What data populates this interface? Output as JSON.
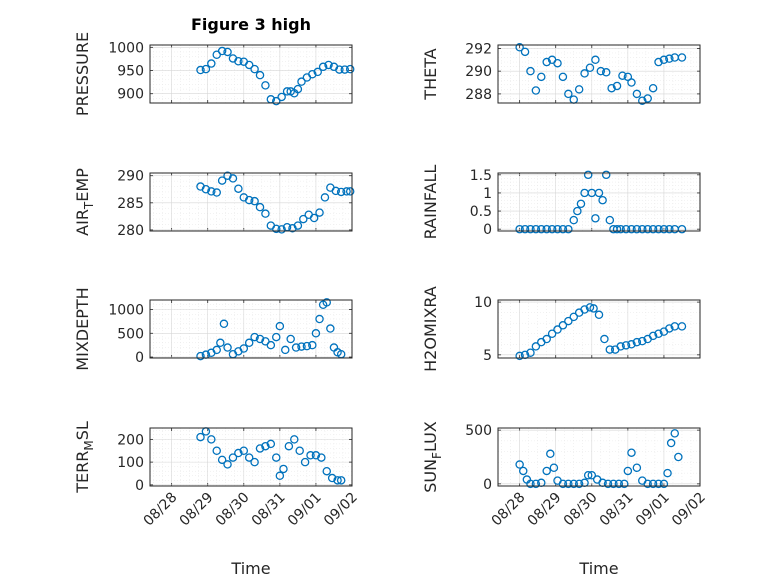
{
  "figure": {
    "title": "Figure 3 high"
  },
  "chart_data": [
    {
      "type": "scatter",
      "panel": 0,
      "title": "Figure 3 high",
      "ylabel": "PRESSURE",
      "ylabel_parts": [],
      "xlabel": "",
      "x_tick_labels": [],
      "ylim": [
        880,
        1005
      ],
      "yticks": [
        900,
        950,
        1000
      ],
      "ytick_labels": [
        "900",
        "950",
        "1000"
      ],
      "color": "#0072BD",
      "series": [
        {
          "x": [
            0.8,
            0.95,
            1.1,
            1.25,
            1.4,
            1.55,
            1.7,
            1.85,
            2.0,
            2.15,
            2.3,
            2.45,
            2.6,
            2.75,
            2.9,
            3.05,
            3.2,
            3.3,
            3.4,
            3.5,
            3.6,
            3.75,
            3.9,
            4.05,
            4.2,
            4.35,
            4.5,
            4.65,
            4.8,
            4.95
          ],
          "y": [
            951,
            953,
            965,
            984,
            992,
            990,
            976,
            970,
            969,
            962,
            953,
            940,
            918,
            888,
            884,
            893,
            905,
            905,
            901,
            910,
            926,
            935,
            942,
            947,
            958,
            962,
            958,
            952,
            952,
            953
          ]
        }
      ]
    },
    {
      "type": "scatter",
      "panel": 1,
      "title": "",
      "ylabel": "THETA",
      "ylabel_parts": [],
      "xlabel": "",
      "x_tick_labels": [],
      "ylim": [
        287.2,
        292.3
      ],
      "yticks": [
        288,
        290,
        292
      ],
      "ytick_labels": [
        "288",
        "290",
        "292"
      ],
      "color": "#0072BD",
      "series": [
        {
          "x": [
            0.0,
            0.15,
            0.3,
            0.45,
            0.6,
            0.75,
            0.9,
            1.05,
            1.2,
            1.35,
            1.5,
            1.65,
            1.8,
            1.95,
            2.1,
            2.25,
            2.4,
            2.55,
            2.7,
            2.85,
            3.0,
            3.1,
            3.25,
            3.4,
            3.55,
            3.7,
            3.85,
            4.0,
            4.15,
            4.3,
            4.5
          ],
          "y": [
            292.1,
            291.7,
            290.0,
            288.3,
            289.5,
            290.8,
            291.0,
            290.7,
            289.5,
            288.0,
            287.5,
            288.4,
            289.8,
            290.3,
            291.0,
            290.0,
            289.9,
            288.5,
            288.7,
            289.6,
            289.5,
            289.0,
            288.0,
            287.4,
            287.6,
            288.5,
            290.8,
            291.0,
            291.1,
            291.2,
            291.2
          ]
        }
      ]
    },
    {
      "type": "scatter",
      "panel": 2,
      "title": "",
      "ylabel": "AIR_TEMP",
      "ylabel_parts": [
        "AIR",
        "T",
        "EMP"
      ],
      "xlabel": "",
      "x_tick_labels": [],
      "ylim": [
        279.8,
        290.5
      ],
      "yticks": [
        280,
        285,
        290
      ],
      "ytick_labels": [
        "280",
        "285",
        "290"
      ],
      "color": "#0072BD",
      "series": [
        {
          "x": [
            0.8,
            0.95,
            1.1,
            1.25,
            1.4,
            1.55,
            1.7,
            1.85,
            2.0,
            2.15,
            2.3,
            2.45,
            2.6,
            2.75,
            2.9,
            3.05,
            3.2,
            3.35,
            3.5,
            3.65,
            3.8,
            3.95,
            4.1,
            4.25,
            4.4,
            4.55,
            4.7,
            4.85,
            4.95
          ],
          "y": [
            288.0,
            287.5,
            287.1,
            286.9,
            289.1,
            290.0,
            289.5,
            287.6,
            286.0,
            285.5,
            285.3,
            284.2,
            283.0,
            280.8,
            280.2,
            280.1,
            280.5,
            280.3,
            280.8,
            282.0,
            282.8,
            282.2,
            283.2,
            286.0,
            287.8,
            287.2,
            287.0,
            287.1,
            287.1
          ]
        }
      ]
    },
    {
      "type": "scatter",
      "panel": 3,
      "title": "",
      "ylabel": "RAINFALL",
      "ylabel_parts": [],
      "xlabel": "",
      "x_tick_labels": [],
      "ylim": [
        -0.05,
        1.55
      ],
      "yticks": [
        0,
        0.5,
        1,
        1.5
      ],
      "ytick_labels": [
        "0",
        "0.5",
        "1",
        "1.5"
      ],
      "color": "#0072BD",
      "series": [
        {
          "x": [
            0.0,
            0.15,
            0.3,
            0.45,
            0.6,
            0.75,
            0.9,
            1.05,
            1.2,
            1.35,
            1.5,
            1.6,
            1.7,
            1.8,
            1.9,
            2.0,
            2.1,
            2.2,
            2.3,
            2.4,
            2.5,
            2.6,
            2.7,
            2.8,
            2.95,
            3.1,
            3.25,
            3.4,
            3.55,
            3.7,
            3.85,
            4.0,
            4.15,
            4.3,
            4.5
          ],
          "y": [
            0,
            0,
            0,
            0,
            0,
            0,
            0,
            0,
            0,
            0,
            0.25,
            0.5,
            0.7,
            1.0,
            1.5,
            1.0,
            0.3,
            1.0,
            0.8,
            1.5,
            0.25,
            0,
            0,
            0,
            0,
            0,
            0,
            0,
            0,
            0,
            0,
            0,
            0,
            0,
            0
          ]
        }
      ]
    },
    {
      "type": "scatter",
      "panel": 4,
      "title": "",
      "ylabel": "MIXDEPTH",
      "ylabel_parts": [],
      "xlabel": "",
      "x_tick_labels": [],
      "ylim": [
        -20,
        1200
      ],
      "yticks": [
        0,
        500,
        1000
      ],
      "ytick_labels": [
        "0",
        "500",
        "1000"
      ],
      "color": "#0072BD",
      "series": [
        {
          "x": [
            0.8,
            0.95,
            1.1,
            1.25,
            1.35,
            1.45,
            1.55,
            1.7,
            1.85,
            2.0,
            2.15,
            2.3,
            2.45,
            2.6,
            2.75,
            2.9,
            3.0,
            3.15,
            3.3,
            3.45,
            3.6,
            3.75,
            3.9,
            4.0,
            4.1,
            4.2,
            4.3,
            4.4,
            4.5,
            4.6,
            4.7
          ],
          "y": [
            20,
            50,
            90,
            150,
            300,
            700,
            200,
            60,
            120,
            180,
            300,
            420,
            380,
            330,
            250,
            420,
            650,
            150,
            380,
            200,
            220,
            230,
            250,
            500,
            800,
            1100,
            1150,
            600,
            200,
            100,
            60
          ]
        }
      ]
    },
    {
      "type": "scatter",
      "panel": 5,
      "title": "",
      "ylabel": "H2OMIXRA",
      "ylabel_parts": [],
      "xlabel": "",
      "x_tick_labels": [],
      "ylim": [
        4.7,
        10.2
      ],
      "yticks": [
        5,
        10
      ],
      "ytick_labels": [
        "5",
        "10"
      ],
      "color": "#0072BD",
      "series": [
        {
          "x": [
            0.0,
            0.15,
            0.3,
            0.45,
            0.6,
            0.75,
            0.9,
            1.05,
            1.2,
            1.35,
            1.5,
            1.65,
            1.8,
            1.95,
            2.05,
            2.2,
            2.35,
            2.5,
            2.65,
            2.8,
            2.95,
            3.1,
            3.25,
            3.4,
            3.55,
            3.7,
            3.85,
            4.0,
            4.15,
            4.3,
            4.5
          ],
          "y": [
            4.9,
            5.0,
            5.2,
            5.8,
            6.2,
            6.5,
            7.0,
            7.4,
            7.8,
            8.2,
            8.6,
            9.0,
            9.3,
            9.5,
            9.4,
            8.8,
            6.5,
            5.5,
            5.5,
            5.8,
            5.9,
            6.0,
            6.2,
            6.3,
            6.5,
            6.8,
            7.0,
            7.2,
            7.5,
            7.7,
            7.7
          ]
        }
      ]
    },
    {
      "type": "scatter",
      "panel": 6,
      "title": "",
      "ylabel": "TERR_MSL",
      "ylabel_parts": [
        "TERR",
        "M",
        "SL"
      ],
      "xlabel": "Time",
      "x_tick_labels": [
        "08/28",
        "08/29",
        "08/30",
        "08/31",
        "09/01",
        "09/02"
      ],
      "ylim": [
        -5,
        250
      ],
      "yticks": [
        0,
        100,
        200
      ],
      "ytick_labels": [
        "0",
        "100",
        "200"
      ],
      "color": "#0072BD",
      "series": [
        {
          "x": [
            0.8,
            0.95,
            1.1,
            1.25,
            1.4,
            1.55,
            1.7,
            1.85,
            2.0,
            2.15,
            2.3,
            2.45,
            2.6,
            2.75,
            2.9,
            3.0,
            3.1,
            3.25,
            3.4,
            3.55,
            3.7,
            3.85,
            4.0,
            4.15,
            4.3,
            4.45,
            4.6,
            4.7
          ],
          "y": [
            210,
            235,
            200,
            150,
            110,
            90,
            120,
            140,
            150,
            120,
            100,
            160,
            170,
            180,
            120,
            40,
            70,
            170,
            200,
            150,
            100,
            130,
            130,
            120,
            60,
            30,
            20,
            20
          ]
        }
      ]
    },
    {
      "type": "scatter",
      "panel": 7,
      "title": "",
      "ylabel": "SUN_FLUX",
      "ylabel_parts": [
        "SUN",
        "F",
        "LUX"
      ],
      "xlabel": "Time",
      "x_tick_labels": [
        "08/28",
        "08/29",
        "08/30",
        "08/31",
        "09/01",
        "09/02"
      ],
      "ylim": [
        -20,
        520
      ],
      "yticks": [
        0,
        500
      ],
      "ytick_labels": [
        "0",
        "500"
      ],
      "color": "#0072BD",
      "series": [
        {
          "x": [
            0.0,
            0.1,
            0.2,
            0.3,
            0.45,
            0.6,
            0.75,
            0.85,
            0.95,
            1.05,
            1.2,
            1.35,
            1.5,
            1.65,
            1.8,
            1.9,
            2.0,
            2.15,
            2.3,
            2.45,
            2.6,
            2.75,
            2.9,
            3.0,
            3.1,
            3.25,
            3.4,
            3.55,
            3.7,
            3.85,
            4.0,
            4.1,
            4.2,
            4.3,
            4.4
          ],
          "y": [
            180,
            120,
            40,
            0,
            0,
            10,
            120,
            280,
            150,
            30,
            0,
            0,
            0,
            0,
            10,
            80,
            80,
            40,
            10,
            0,
            0,
            0,
            0,
            120,
            290,
            150,
            30,
            0,
            0,
            0,
            0,
            100,
            380,
            470,
            250
          ]
        }
      ]
    }
  ]
}
